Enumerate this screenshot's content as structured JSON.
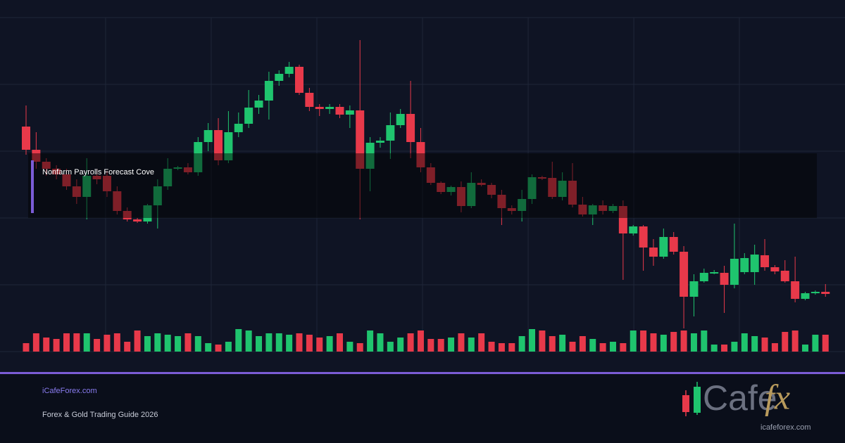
{
  "chart_data": {
    "type": "candlestick",
    "annotation": "Nonfarm Payrolls Forecast Cove",
    "footer": {
      "site": "iCafeForex.com",
      "subtitle": "Forex & Gold Trading Guide 2026",
      "logo_text": "Cafe",
      "logo_accent": "fx",
      "logo_url": "icafeforex.com"
    },
    "up_color": "#1fc46e",
    "down_color": "#e8394a",
    "ylim": [
      0,
      475
    ],
    "yticks": [
      0,
      95,
      190,
      285,
      380,
      475
    ],
    "xlim": [
      -2.575,
      80.93
    ],
    "xticks": [
      7.86,
      18.3,
      28.74,
      39.18,
      49.62,
      60.06,
      70.49
    ],
    "volume_lim": [
      0,
      100
    ],
    "grid": true,
    "open": [
      320,
      287,
      270,
      260,
      252,
      235,
      220,
      250,
      250,
      228,
      200,
      188,
      185,
      208,
      235,
      260,
      262,
      255,
      298,
      315,
      272,
      312,
      324,
      347,
      357,
      385,
      395,
      405,
      368,
      348,
      345,
      348,
      337,
      343,
      260,
      297,
      300,
      322,
      338,
      298,
      262,
      240,
      227,
      234,
      207,
      240,
      237,
      223,
      204,
      200,
      217,
      248,
      247,
      220,
      243,
      209,
      195,
      208,
      200,
      207,
      168,
      178,
      148,
      135,
      163,
      142,
      78,
      100,
      111,
      112,
      95,
      113,
      113,
      137,
      120,
      115,
      100,
      75,
      83,
      85
    ],
    "high": [
      350,
      312,
      275,
      265,
      260,
      245,
      275,
      260,
      257,
      235,
      205,
      190,
      210,
      245,
      275,
      264,
      268,
      305,
      325,
      332,
      342,
      340,
      372,
      365,
      398,
      400,
      412,
      408,
      375,
      352,
      352,
      352,
      350,
      443,
      305,
      305,
      340,
      345,
      385,
      318,
      268,
      242,
      236,
      242,
      255,
      245,
      240,
      230,
      208,
      230,
      252,
      250,
      270,
      255,
      268,
      220,
      210,
      215,
      210,
      215,
      180,
      180,
      160,
      175,
      170,
      150,
      110,
      118,
      116,
      122,
      182,
      140,
      152,
      160,
      123,
      130,
      135,
      85,
      87,
      96
    ],
    "low": [
      280,
      260,
      250,
      245,
      230,
      210,
      188,
      238,
      220,
      195,
      185,
      183,
      182,
      175,
      230,
      258,
      252,
      250,
      285,
      265,
      268,
      305,
      318,
      338,
      330,
      378,
      390,
      365,
      342,
      335,
      338,
      332,
      318,
      188,
      228,
      290,
      274,
      318,
      275,
      255,
      237,
      224,
      222,
      198,
      204,
      235,
      218,
      180,
      195,
      185,
      210,
      244,
      217,
      215,
      205,
      192,
      180,
      195,
      197,
      102,
      165,
      115,
      122,
      132,
      138,
      33,
      50,
      98,
      110,
      55,
      90,
      110,
      95,
      115,
      110,
      98,
      70,
      73,
      81,
      78
    ],
    "close": [
      287,
      270,
      260,
      252,
      235,
      220,
      250,
      245,
      228,
      200,
      188,
      185,
      208,
      235,
      260,
      262,
      255,
      298,
      315,
      272,
      312,
      324,
      347,
      357,
      385,
      395,
      405,
      368,
      348,
      345,
      348,
      337,
      343,
      260,
      297,
      300,
      322,
      338,
      298,
      262,
      240,
      227,
      234,
      207,
      240,
      237,
      223,
      204,
      200,
      217,
      248,
      247,
      220,
      243,
      209,
      195,
      208,
      200,
      207,
      168,
      178,
      148,
      135,
      163,
      142,
      78,
      100,
      112,
      113,
      95,
      132,
      133,
      138,
      120,
      114,
      100,
      75,
      83,
      85,
      82
    ],
    "volume": [
      12,
      26,
      20,
      18,
      26,
      26,
      26,
      18,
      24,
      26,
      14,
      30,
      22,
      26,
      24,
      22,
      26,
      22,
      12,
      10,
      14,
      32,
      30,
      22,
      26,
      26,
      24,
      26,
      24,
      20,
      22,
      26,
      14,
      12,
      30,
      26,
      14,
      20,
      26,
      30,
      18,
      18,
      20,
      26,
      20,
      26,
      14,
      12,
      12,
      22,
      32,
      30,
      22,
      24,
      14,
      22,
      18,
      12,
      14,
      12,
      30,
      30,
      26,
      24,
      28,
      30,
      26,
      30,
      10,
      10,
      14,
      26,
      22,
      20,
      12,
      28,
      30,
      10,
      24,
      24
    ]
  }
}
